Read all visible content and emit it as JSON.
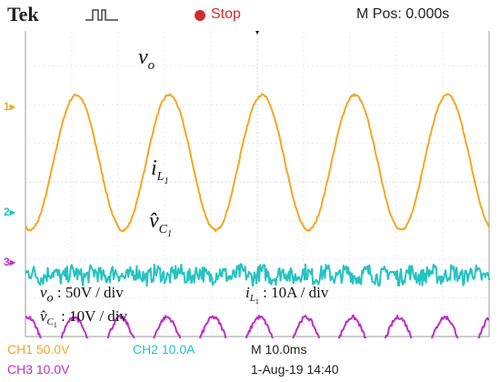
{
  "header": {
    "brand": "Tek",
    "trigger_icon": "trigger-pulse-icon",
    "status": "Stop",
    "status_color": "#d22b2b",
    "m_pos": "M Pos: 0.000s"
  },
  "channel_markers": [
    {
      "label": "1",
      "color": "#f5a623"
    },
    {
      "label": "2",
      "color": "#25c2c2"
    },
    {
      "label": "3",
      "color": "#c02cc8"
    }
  ],
  "signal_labels": {
    "vo": "v",
    "vo_sub": "o",
    "iL1": "i",
    "iL1_sub": "L",
    "iL1_subsub": "1",
    "vC1": "v̂",
    "vC1_sub": "C",
    "vC1_subsub": "1"
  },
  "annotations": {
    "vo_scale": ": 50V / div",
    "iL1_scale": ": 10A / div",
    "vC1_scale": ": 10V / div"
  },
  "bottom": {
    "ch1": "CH1  50.0V",
    "ch2": "CH2  10.0A",
    "ch3": "CH3  10.0V",
    "timebase": "M 10.0ms",
    "date": "1-Aug-19 14:40"
  },
  "chart_data": {
    "type": "line",
    "grid": true,
    "divisions": {
      "x": 10,
      "y": 8
    },
    "series": [
      {
        "name": "CH1",
        "color": "#f5a623",
        "shape": "sine",
        "cycles": 5,
        "offset_div": 4.5,
        "amplitude_div": 1.75,
        "phase": -0.3,
        "noise": 0.03
      },
      {
        "name": "CH2",
        "color": "#25c2c2",
        "shape": "noise",
        "cycles": 0,
        "offset_div": 1.6,
        "amplitude_div": 0.15,
        "phase": 0,
        "noise": 0.22
      },
      {
        "name": "CH3",
        "color": "#c02cc8",
        "shape": "sine",
        "cycles": 10,
        "offset_div": 0.05,
        "amplitude_div": 0.45,
        "phase": 0.2,
        "noise": 0.05
      }
    ]
  }
}
